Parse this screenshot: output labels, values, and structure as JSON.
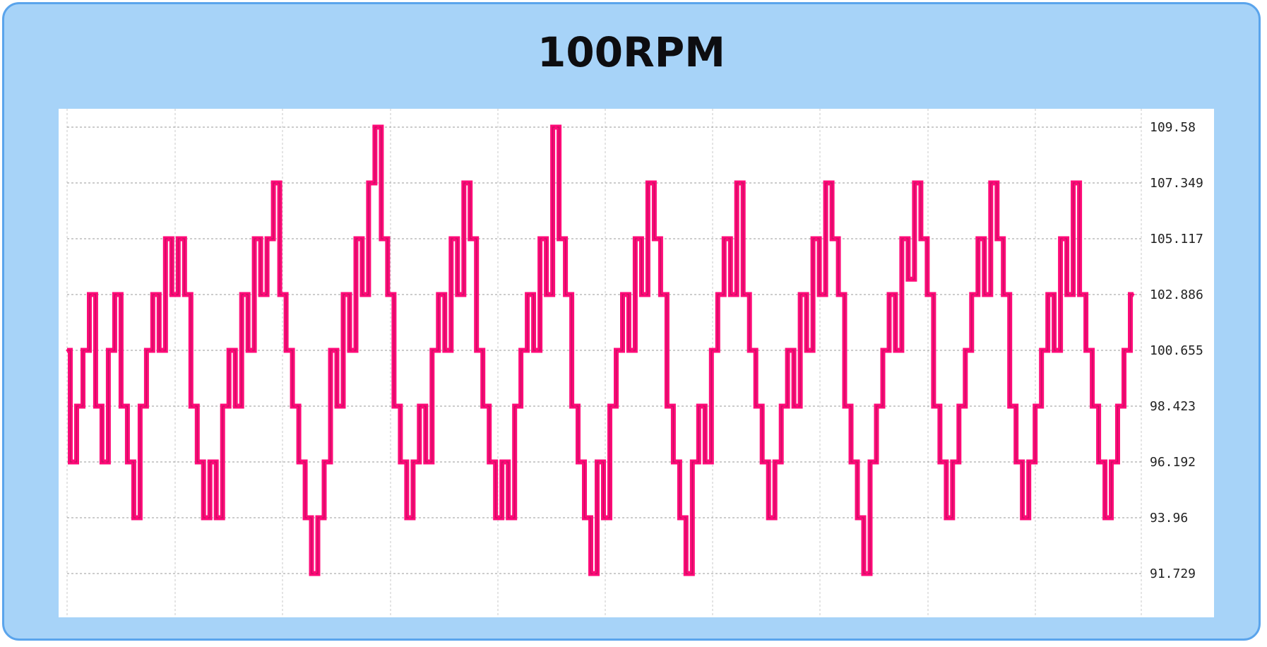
{
  "title": "100RPM",
  "chart_data": {
    "type": "line",
    "title": "100RPM",
    "xlabel": "",
    "ylabel": "",
    "y_ticks": [
      "109.58",
      "107.349",
      "105.117",
      "102.886",
      "100.655",
      "98.423",
      "96.192",
      "93.96",
      "91.729"
    ],
    "ylim": [
      91.729,
      109.58
    ],
    "grid": true,
    "line_color": "#ff0a78",
    "period_count": 10.5,
    "series": [
      {
        "values": [
          100.655,
          96.192,
          98.423,
          100.655,
          102.886,
          98.423,
          96.192,
          100.655,
          102.886,
          98.423,
          96.192,
          93.96,
          98.423,
          100.655,
          102.886,
          100.655,
          105.117,
          102.886,
          105.117,
          102.886,
          98.423,
          96.192,
          93.96,
          96.192,
          93.96,
          98.423,
          100.655,
          98.423,
          102.886,
          100.655,
          105.117,
          102.886,
          105.117,
          107.349,
          102.886,
          100.655,
          98.423,
          96.192,
          93.96,
          91.729,
          93.96,
          96.192,
          100.655,
          98.423,
          102.886,
          100.655,
          105.117,
          102.886,
          107.349,
          109.58,
          105.117,
          102.886,
          98.423,
          96.192,
          93.96,
          96.192,
          98.423,
          96.192,
          100.655,
          102.886,
          100.655,
          105.117,
          102.886,
          107.349,
          105.117,
          100.655,
          98.423,
          96.192,
          93.96,
          96.192,
          93.96,
          98.423,
          100.655,
          102.886,
          100.655,
          105.117,
          102.886,
          109.58,
          105.117,
          102.886,
          98.423,
          96.192,
          93.96,
          91.729,
          96.192,
          93.96,
          98.423,
          100.655,
          102.886,
          100.655,
          105.117,
          102.886,
          107.349,
          105.117,
          102.886,
          98.423,
          96.192,
          93.96,
          91.729,
          96.192,
          98.423,
          96.192,
          100.655,
          102.886,
          105.117,
          102.886,
          107.349,
          102.886,
          100.655,
          98.423,
          96.192,
          93.96,
          96.192,
          98.423,
          100.655,
          98.423,
          102.886,
          100.655,
          105.117,
          102.886,
          107.349,
          105.117,
          102.886,
          98.423,
          96.192,
          93.96,
          91.729,
          96.192,
          98.423,
          100.655,
          102.886,
          100.655,
          105.117,
          103.5,
          107.349,
          105.117,
          102.886,
          98.423,
          96.192,
          93.96,
          96.192,
          98.423,
          100.655,
          102.886,
          105.117,
          102.886,
          107.349,
          105.117,
          102.886,
          98.423,
          96.192,
          93.96,
          96.192,
          98.423,
          100.655,
          102.886,
          100.655,
          105.117,
          102.886,
          107.349,
          102.886,
          100.655,
          98.423,
          96.192,
          93.96,
          96.192,
          98.423,
          100.655,
          102.886
        ]
      }
    ]
  }
}
